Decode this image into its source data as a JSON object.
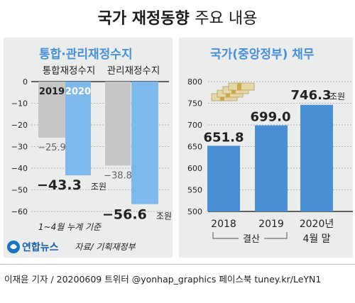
{
  "header": {
    "title_bold": "국가 재정동향",
    "title_light": "주요 내용"
  },
  "left": {
    "subtitle": "통합·관리재정수지",
    "note": "1~4월 누계 기준"
  },
  "right": {
    "subtitle": "국가(중앙정부) 채무"
  },
  "footer": {
    "logo": "연합뉴스",
    "source": "자료/ 기획재정부",
    "credit": "이재윤 기자 / 20200609   트위터 @yonhap_graphics  페이스북 tuney.kr/LeYN1"
  },
  "colors": {
    "gray_bar": "#c6c6c6",
    "blue_bar": "#7fb8ea",
    "debt_bar": "#4a8fd3",
    "accent": "#4a90d6"
  },
  "chart_data": [
    {
      "type": "bar",
      "title": "통합·관리재정수지",
      "groups": [
        "통합재정수지",
        "관리재정수지"
      ],
      "series": [
        {
          "name": "2019",
          "values": [
            -25.9,
            -38.8
          ]
        },
        {
          "name": "2020",
          "values": [
            -43.3,
            -56.6
          ]
        }
      ],
      "value_labels": [
        "−25.9",
        "−38.8",
        "−43.3",
        "−56.6"
      ],
      "unit_suffix": "조원",
      "ylim": [
        -60,
        0
      ],
      "yticks": [
        0,
        -10,
        -20,
        -30,
        -40,
        -50,
        -60
      ],
      "ytick_labels": [
        "0",
        "−10",
        "−20",
        "−30",
        "−40",
        "−50",
        "−60"
      ],
      "grid": true
    },
    {
      "type": "bar",
      "title": "국가(중앙정부) 채무",
      "categories": [
        "2018",
        "2019",
        "2020년"
      ],
      "category_sub": [
        "",
        "",
        "4월 말"
      ],
      "bracket_label": "결산",
      "values": [
        651.8,
        699.0,
        746.3
      ],
      "value_labels": [
        "651.8",
        "699.0",
        "746.3"
      ],
      "unit_suffix": "조원",
      "ylim": [
        500,
        800
      ],
      "yticks": [
        500,
        550,
        600,
        650,
        700,
        750,
        800
      ],
      "grid": true
    }
  ]
}
